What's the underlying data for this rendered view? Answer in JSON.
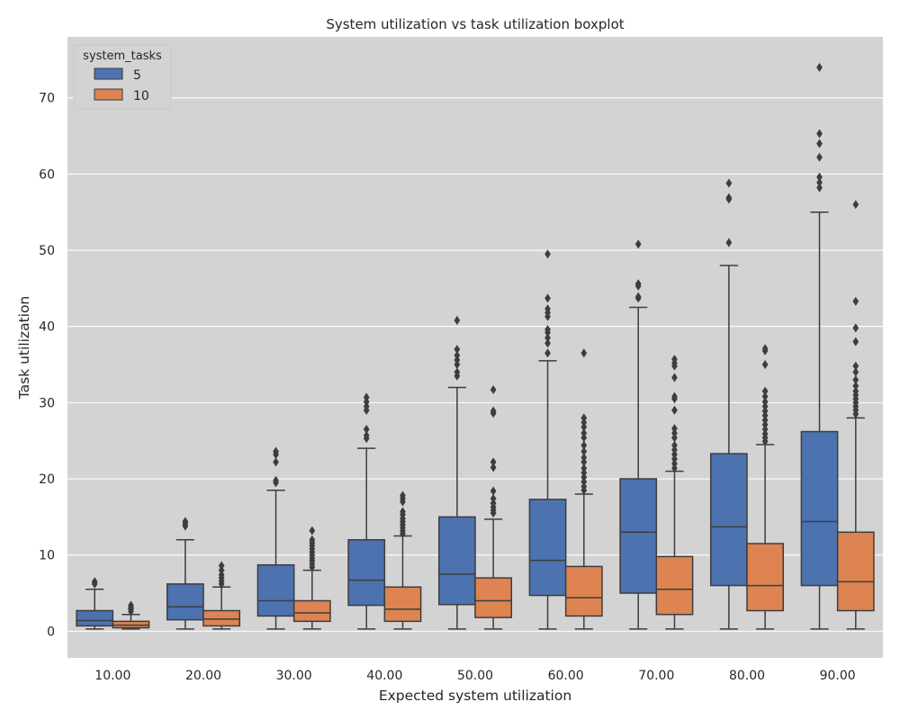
{
  "chart_data": {
    "type": "box",
    "title": "System utilization vs task utilization boxplot",
    "xlabel": "Expected system utilization",
    "ylabel": "Task utilization",
    "ylim": [
      -3.5,
      78
    ],
    "y_ticks": [
      0,
      10,
      20,
      30,
      40,
      50,
      60,
      70
    ],
    "categories": [
      "10.00",
      "20.00",
      "30.00",
      "40.00",
      "50.00",
      "60.00",
      "70.00",
      "80.00",
      "90.00"
    ],
    "grid": true,
    "legend": {
      "title": "system_tasks",
      "placement": "top-left",
      "entries": [
        "5",
        "10"
      ]
    },
    "colors": {
      "background": "#d3d3d3",
      "grid": "#ffffff",
      "edge": "#3d3d3d",
      "series_5": "#4c72b0",
      "series_10": "#dd8452"
    },
    "series": [
      {
        "name": "5",
        "boxes": [
          {
            "whislo": 0.3,
            "q1": 0.7,
            "med": 1.4,
            "q3": 2.7,
            "whishi": 5.5,
            "fliers": [
              6.2,
              6.5
            ]
          },
          {
            "whislo": 0.3,
            "q1": 1.5,
            "med": 3.2,
            "q3": 6.2,
            "whishi": 12.0,
            "fliers": [
              13.8,
              14.1,
              14.4
            ]
          },
          {
            "whislo": 0.3,
            "q1": 2.0,
            "med": 4.0,
            "q3": 8.7,
            "whishi": 18.5,
            "fliers": [
              19.5,
              19.8,
              22.2,
              23.2,
              23.6
            ]
          },
          {
            "whislo": 0.3,
            "q1": 3.4,
            "med": 6.7,
            "q3": 12.0,
            "whishi": 24.0,
            "fliers": [
              25.3,
              25.7,
              26.5,
              29.0,
              29.5,
              30.1,
              30.7
            ]
          },
          {
            "whislo": 0.3,
            "q1": 3.5,
            "med": 7.5,
            "q3": 15.0,
            "whishi": 32.0,
            "fliers": [
              33.5,
              34.0,
              35.0,
              35.6,
              36.2,
              37.0,
              40.8
            ]
          },
          {
            "whislo": 0.3,
            "q1": 4.7,
            "med": 9.3,
            "q3": 17.3,
            "whishi": 35.5,
            "fliers": [
              36.5,
              37.8,
              38.5,
              39.2,
              39.6,
              41.3,
              41.8,
              42.3,
              43.7,
              49.5
            ]
          },
          {
            "whislo": 0.3,
            "q1": 5.0,
            "med": 13.0,
            "q3": 20.0,
            "whishi": 42.5,
            "fliers": [
              43.7,
              43.9,
              45.3,
              45.6,
              50.8
            ]
          },
          {
            "whislo": 0.3,
            "q1": 6.0,
            "med": 13.7,
            "q3": 23.3,
            "whishi": 48.0,
            "fliers": [
              51.0,
              56.7,
              56.9,
              58.8
            ]
          },
          {
            "whislo": 0.3,
            "q1": 6.0,
            "med": 14.4,
            "q3": 26.2,
            "whishi": 55.0,
            "fliers": [
              58.2,
              58.9,
              59.6,
              62.2,
              64.0,
              65.3,
              74.0
            ]
          }
        ]
      },
      {
        "name": "10",
        "boxes": [
          {
            "whislo": 0.3,
            "q1": 0.45,
            "med": 0.8,
            "q3": 1.3,
            "whishi": 2.2,
            "fliers": [
              2.6,
              2.9,
              3.1,
              3.4
            ]
          },
          {
            "whislo": 0.3,
            "q1": 0.7,
            "med": 1.6,
            "q3": 2.7,
            "whishi": 5.8,
            "fliers": [
              6.2,
              6.6,
              7.0,
              7.4,
              8.0,
              8.6
            ]
          },
          {
            "whislo": 0.3,
            "q1": 1.3,
            "med": 2.4,
            "q3": 4.0,
            "whishi": 8.0,
            "fliers": [
              8.4,
              8.8,
              9.2,
              9.6,
              10.0,
              10.4,
              10.8,
              11.2,
              11.6,
              12.0,
              13.2
            ]
          },
          {
            "whislo": 0.3,
            "q1": 1.3,
            "med": 2.9,
            "q3": 5.8,
            "whishi": 12.5,
            "fliers": [
              12.8,
              13.2,
              13.6,
              14.0,
              14.4,
              14.8,
              15.3,
              15.7,
              17.0,
              17.4,
              17.8
            ]
          },
          {
            "whislo": 0.3,
            "q1": 1.8,
            "med": 4.0,
            "q3": 7.0,
            "whishi": 14.7,
            "fliers": [
              15.5,
              15.9,
              16.3,
              16.8,
              17.4,
              18.4,
              21.5,
              22.2,
              28.6,
              28.9,
              31.7
            ]
          },
          {
            "whislo": 0.3,
            "q1": 2.0,
            "med": 4.4,
            "q3": 8.5,
            "whishi": 18.0,
            "fliers": [
              18.5,
              19.0,
              19.6,
              20.2,
              20.8,
              21.4,
              22.2,
              22.8,
              23.6,
              24.4,
              25.4,
              26.0,
              26.8,
              27.4,
              28.0,
              36.5
            ]
          },
          {
            "whislo": 0.3,
            "q1": 2.2,
            "med": 5.5,
            "q3": 9.8,
            "whishi": 21.0,
            "fliers": [
              21.4,
              22.0,
              22.6,
              23.2,
              23.8,
              24.4,
              25.4,
              26.0,
              26.6,
              29.0,
              30.5,
              30.8,
              33.3,
              34.8,
              35.2,
              35.7
            ]
          },
          {
            "whislo": 0.3,
            "q1": 2.7,
            "med": 6.0,
            "q3": 11.5,
            "whishi": 24.5,
            "fliers": [
              24.9,
              25.4,
              25.9,
              26.5,
              27.1,
              27.7,
              28.3,
              28.9,
              29.5,
              30.1,
              30.8,
              31.5,
              35.0,
              36.8,
              37.1
            ]
          },
          {
            "whislo": 0.3,
            "q1": 2.7,
            "med": 6.5,
            "q3": 13.0,
            "whishi": 28.0,
            "fliers": [
              28.5,
              29.0,
              29.5,
              30.0,
              30.5,
              31.0,
              31.5,
              32.2,
              33.0,
              34.0,
              34.8,
              38.0,
              39.8,
              43.3,
              56.0
            ]
          }
        ]
      }
    ]
  }
}
